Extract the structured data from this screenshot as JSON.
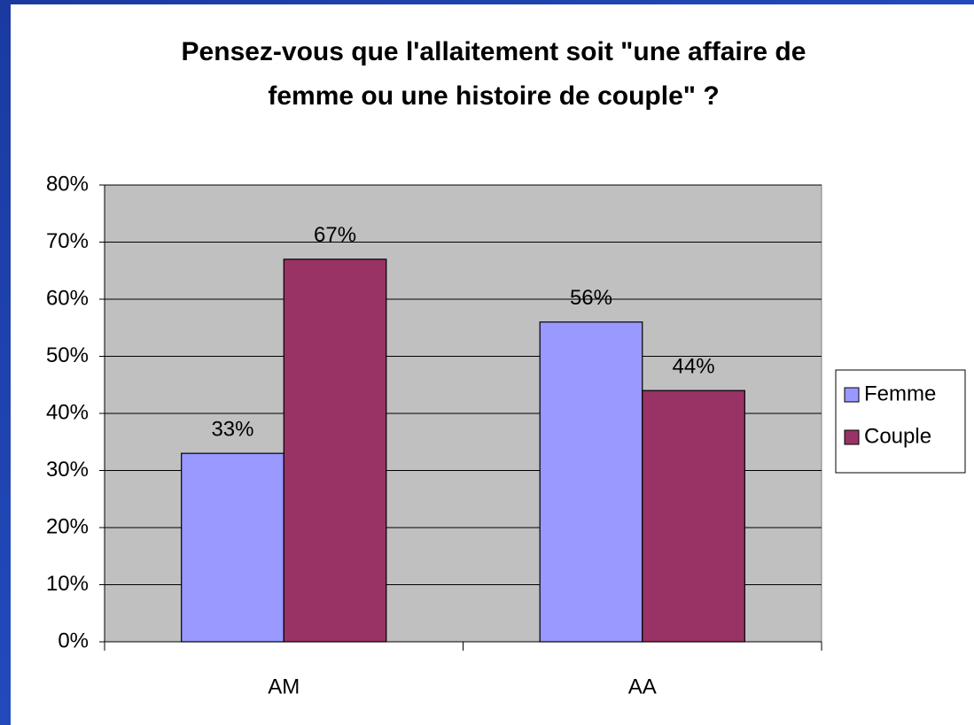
{
  "chart_data": {
    "type": "bar",
    "title": [
      "Pensez-vous que l'allaitement soit \"une affaire de",
      "femme ou une histoire de couple\" ?"
    ],
    "categories": [
      "AM",
      "AA"
    ],
    "series": [
      {
        "name": "Femme",
        "color": "#9999ff",
        "values": [
          33,
          56
        ],
        "value_labels": [
          "33%",
          "56%"
        ]
      },
      {
        "name": "Couple",
        "color": "#993366",
        "values": [
          67,
          44
        ],
        "value_labels": [
          "67%",
          "44%"
        ]
      }
    ],
    "ylim": [
      0,
      80
    ],
    "yticks": [
      {
        "value": 0,
        "label": "0%"
      },
      {
        "value": 10,
        "label": "10%"
      },
      {
        "value": 20,
        "label": "20%"
      },
      {
        "value": 30,
        "label": "30%"
      },
      {
        "value": 40,
        "label": "40%"
      },
      {
        "value": 50,
        "label": "50%"
      },
      {
        "value": 60,
        "label": "60%"
      },
      {
        "value": 70,
        "label": "70%"
      },
      {
        "value": 80,
        "label": "80%"
      }
    ],
    "grid": true,
    "legend": "right"
  }
}
